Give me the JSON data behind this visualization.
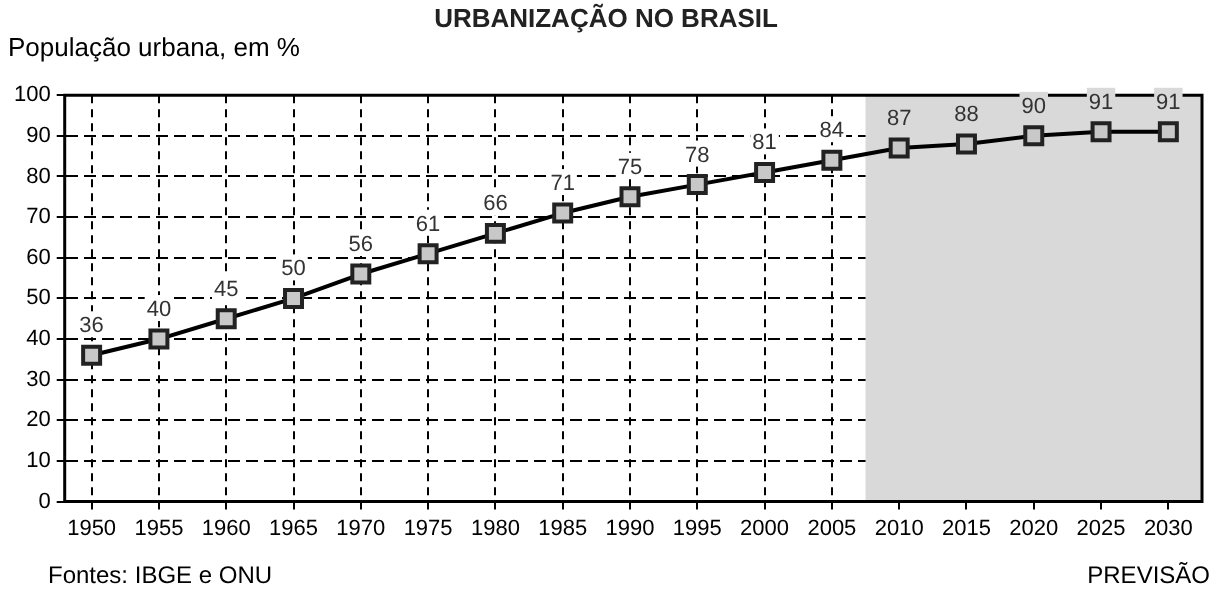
{
  "chart_data": {
    "type": "line",
    "title": "URBANIZAÇÃO NO BRASIL",
    "ylabel": "População urbana, em %",
    "x": [
      1950,
      1955,
      1960,
      1965,
      1970,
      1975,
      1980,
      1985,
      1990,
      1995,
      2000,
      2005,
      2010,
      2015,
      2020,
      2025,
      2030
    ],
    "series": [
      {
        "color": "#000000",
        "values": [
          36,
          40,
          45,
          50,
          56,
          61,
          66,
          71,
          75,
          78,
          81,
          84,
          87,
          88,
          90,
          91,
          91
        ]
      }
    ],
    "xlim": [
      1948,
      2032.5
    ],
    "xticks": [
      1950,
      1955,
      1960,
      1965,
      1970,
      1975,
      1980,
      1985,
      1990,
      1995,
      2000,
      2005,
      2010,
      2015,
      2020,
      2025,
      2030
    ],
    "ylim": [
      0,
      100
    ],
    "yticks": [
      0,
      10,
      20,
      30,
      40,
      50,
      60,
      70,
      80,
      90,
      100
    ],
    "grid": true,
    "marker": "square",
    "line_style": "solid",
    "data_labels": true,
    "bands": [
      {
        "axis": "x",
        "from": 2007.5,
        "to": 2032.5,
        "label": "PREVISÃO",
        "color": "#d9d9d9"
      }
    ],
    "annotations": [
      "Fontes: IBGE e ONU"
    ]
  }
}
